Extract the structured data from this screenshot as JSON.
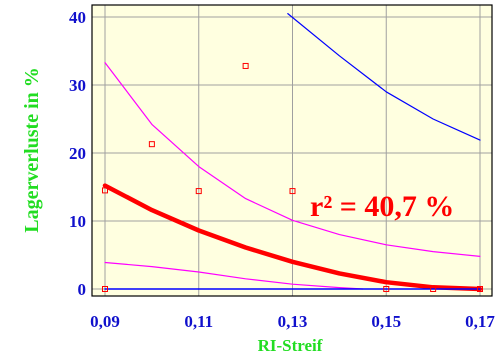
{
  "chart_data": {
    "type": "scatter",
    "xlabel": "RI-Streif",
    "ylabel": "Lagerverluste in  %",
    "xlim": [
      0.09,
      0.17
    ],
    "ylim": [
      -1,
      40.5
    ],
    "x_ticks": [
      "0,09",
      "0,11",
      "0,13",
      "0,15",
      "0,17"
    ],
    "y_ticks": [
      "0",
      "10",
      "20",
      "30",
      "40"
    ],
    "annotation": "r² = 40,7 %",
    "grid": true,
    "background": "#ffffe0",
    "series": [
      {
        "kind": "points",
        "color": "#ff0000",
        "points": [
          [
            0.09,
            14.5
          ],
          [
            0.09,
            0.0
          ],
          [
            0.1,
            21.3
          ],
          [
            0.11,
            14.4
          ],
          [
            0.12,
            32.8
          ],
          [
            0.13,
            14.4
          ],
          [
            0.15,
            0.0
          ],
          [
            0.16,
            0.0
          ],
          [
            0.17,
            0.0
          ]
        ]
      },
      {
        "kind": "line",
        "role": "fit",
        "color": "#ff0000",
        "points": [
          [
            0.09,
            15.2
          ],
          [
            0.1,
            11.6
          ],
          [
            0.11,
            8.6
          ],
          [
            0.12,
            6.1
          ],
          [
            0.13,
            4.0
          ],
          [
            0.14,
            2.3
          ],
          [
            0.15,
            1.0
          ],
          [
            0.16,
            0.25
          ],
          [
            0.17,
            0.0
          ]
        ]
      },
      {
        "kind": "line",
        "role": "confidence-upper",
        "color": "#ff00ff",
        "points": [
          [
            0.09,
            33.3
          ],
          [
            0.1,
            24.2
          ],
          [
            0.11,
            18.0
          ],
          [
            0.12,
            13.3
          ],
          [
            0.13,
            10.1
          ],
          [
            0.14,
            8.0
          ],
          [
            0.15,
            6.5
          ],
          [
            0.16,
            5.5
          ],
          [
            0.17,
            4.8
          ]
        ]
      },
      {
        "kind": "line",
        "role": "confidence-lower",
        "color": "#ff00ff",
        "points": [
          [
            0.09,
            3.9
          ],
          [
            0.1,
            3.3
          ],
          [
            0.11,
            2.5
          ],
          [
            0.12,
            1.5
          ],
          [
            0.13,
            0.7
          ],
          [
            0.14,
            0.2
          ],
          [
            0.145,
            0.0
          ]
        ]
      },
      {
        "kind": "line",
        "role": "prediction-upper",
        "color": "#0000ff",
        "points": [
          [
            0.129,
            40.5
          ],
          [
            0.14,
            34.3
          ],
          [
            0.15,
            29.0
          ],
          [
            0.16,
            25.0
          ],
          [
            0.17,
            21.9
          ]
        ]
      },
      {
        "kind": "line",
        "role": "prediction-lower",
        "color": "#0000ff",
        "points": [
          [
            0.09,
            0.0
          ],
          [
            0.17,
            0.0
          ]
        ]
      }
    ]
  }
}
